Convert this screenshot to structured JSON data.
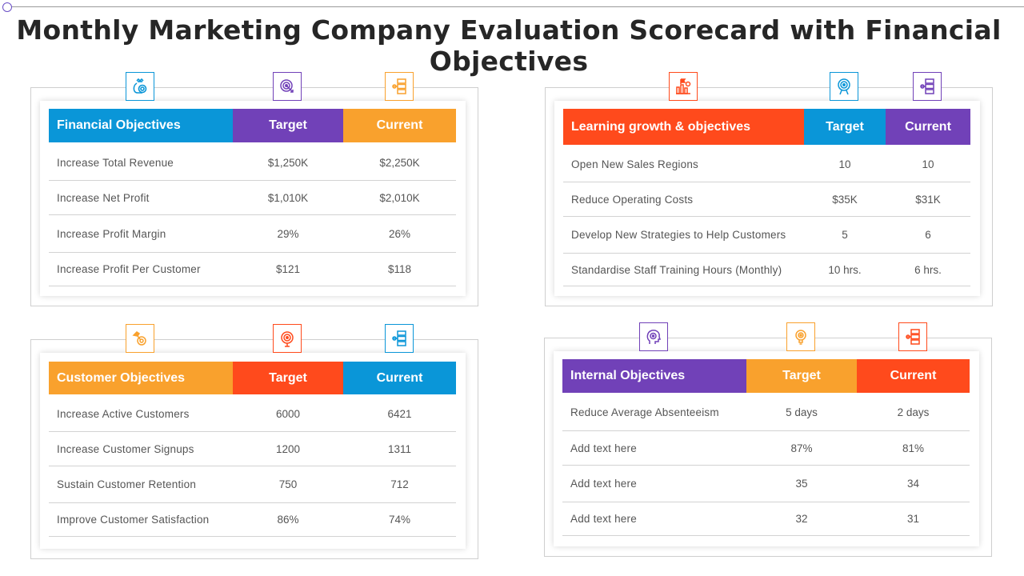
{
  "title": "Monthly Marketing Company Evaluation Scorecard with Financial Objectives",
  "colors": {
    "blue": "#0a96d8",
    "purple": "#7141b8",
    "orange": "#f9a12d",
    "red": "#ff4a1c"
  },
  "tables": {
    "financial": {
      "header": "Financial Objectives",
      "target_label": "Target",
      "current_label": "Current",
      "icons": [
        "money-bag-icon",
        "target-icon",
        "stack-icon"
      ],
      "rows": [
        {
          "label": "Increase Total Revenue",
          "target": "$1,250K",
          "current": "$2,250K"
        },
        {
          "label": "Increase Net Profit",
          "target": "$1,010K",
          "current": "$2,010K"
        },
        {
          "label": "Increase Profit Margin",
          "target": "29%",
          "current": "26%"
        },
        {
          "label": "Increase Profit Per Customer",
          "target": "$121",
          "current": "$118"
        }
      ]
    },
    "learning": {
      "header": "Learning growth & objectives",
      "target_label": "Target",
      "current_label": "Current",
      "icons": [
        "bar-chart-flag-icon",
        "target-icon",
        "stack-icon"
      ],
      "rows": [
        {
          "label": "Open New Sales Regions",
          "target": "10",
          "current": "10"
        },
        {
          "label": "Reduce Operating Costs",
          "target": "$35K",
          "current": "$31K"
        },
        {
          "label": "Develop New Strategies to Help Customers",
          "target": "5",
          "current": "6"
        },
        {
          "label": "Standardise Staff Training Hours (Monthly)",
          "target": "10 hrs.",
          "current": "6 hrs."
        }
      ]
    },
    "customer": {
      "header": "Customer Objectives",
      "target_label": "Target",
      "current_label": "Current",
      "icons": [
        "hand-target-icon",
        "target-icon",
        "stack-icon"
      ],
      "rows": [
        {
          "label": "Increase Active Customers",
          "target": "6000",
          "current": "6421"
        },
        {
          "label": "Increase Customer Signups",
          "target": "1200",
          "current": "1311"
        },
        {
          "label": "Sustain Customer Retention",
          "target": "750",
          "current": "712"
        },
        {
          "label": "Improve  Customer Satisfaction",
          "target": "86%",
          "current": "74%"
        }
      ]
    },
    "internal": {
      "header": "Internal Objectives",
      "target_label": "Target",
      "current_label": "Current",
      "icons": [
        "head-target-icon",
        "bulb-target-icon",
        "stack-icon"
      ],
      "rows": [
        {
          "label": "Reduce Average  Absenteeism",
          "target": "5 days",
          "current": "2 days"
        },
        {
          "label": "Add text here",
          "target": "87%",
          "current": "81%"
        },
        {
          "label": "Add text here",
          "target": "35",
          "current": "34"
        },
        {
          "label": "Add text here",
          "target": "32",
          "current": "31"
        }
      ]
    }
  }
}
